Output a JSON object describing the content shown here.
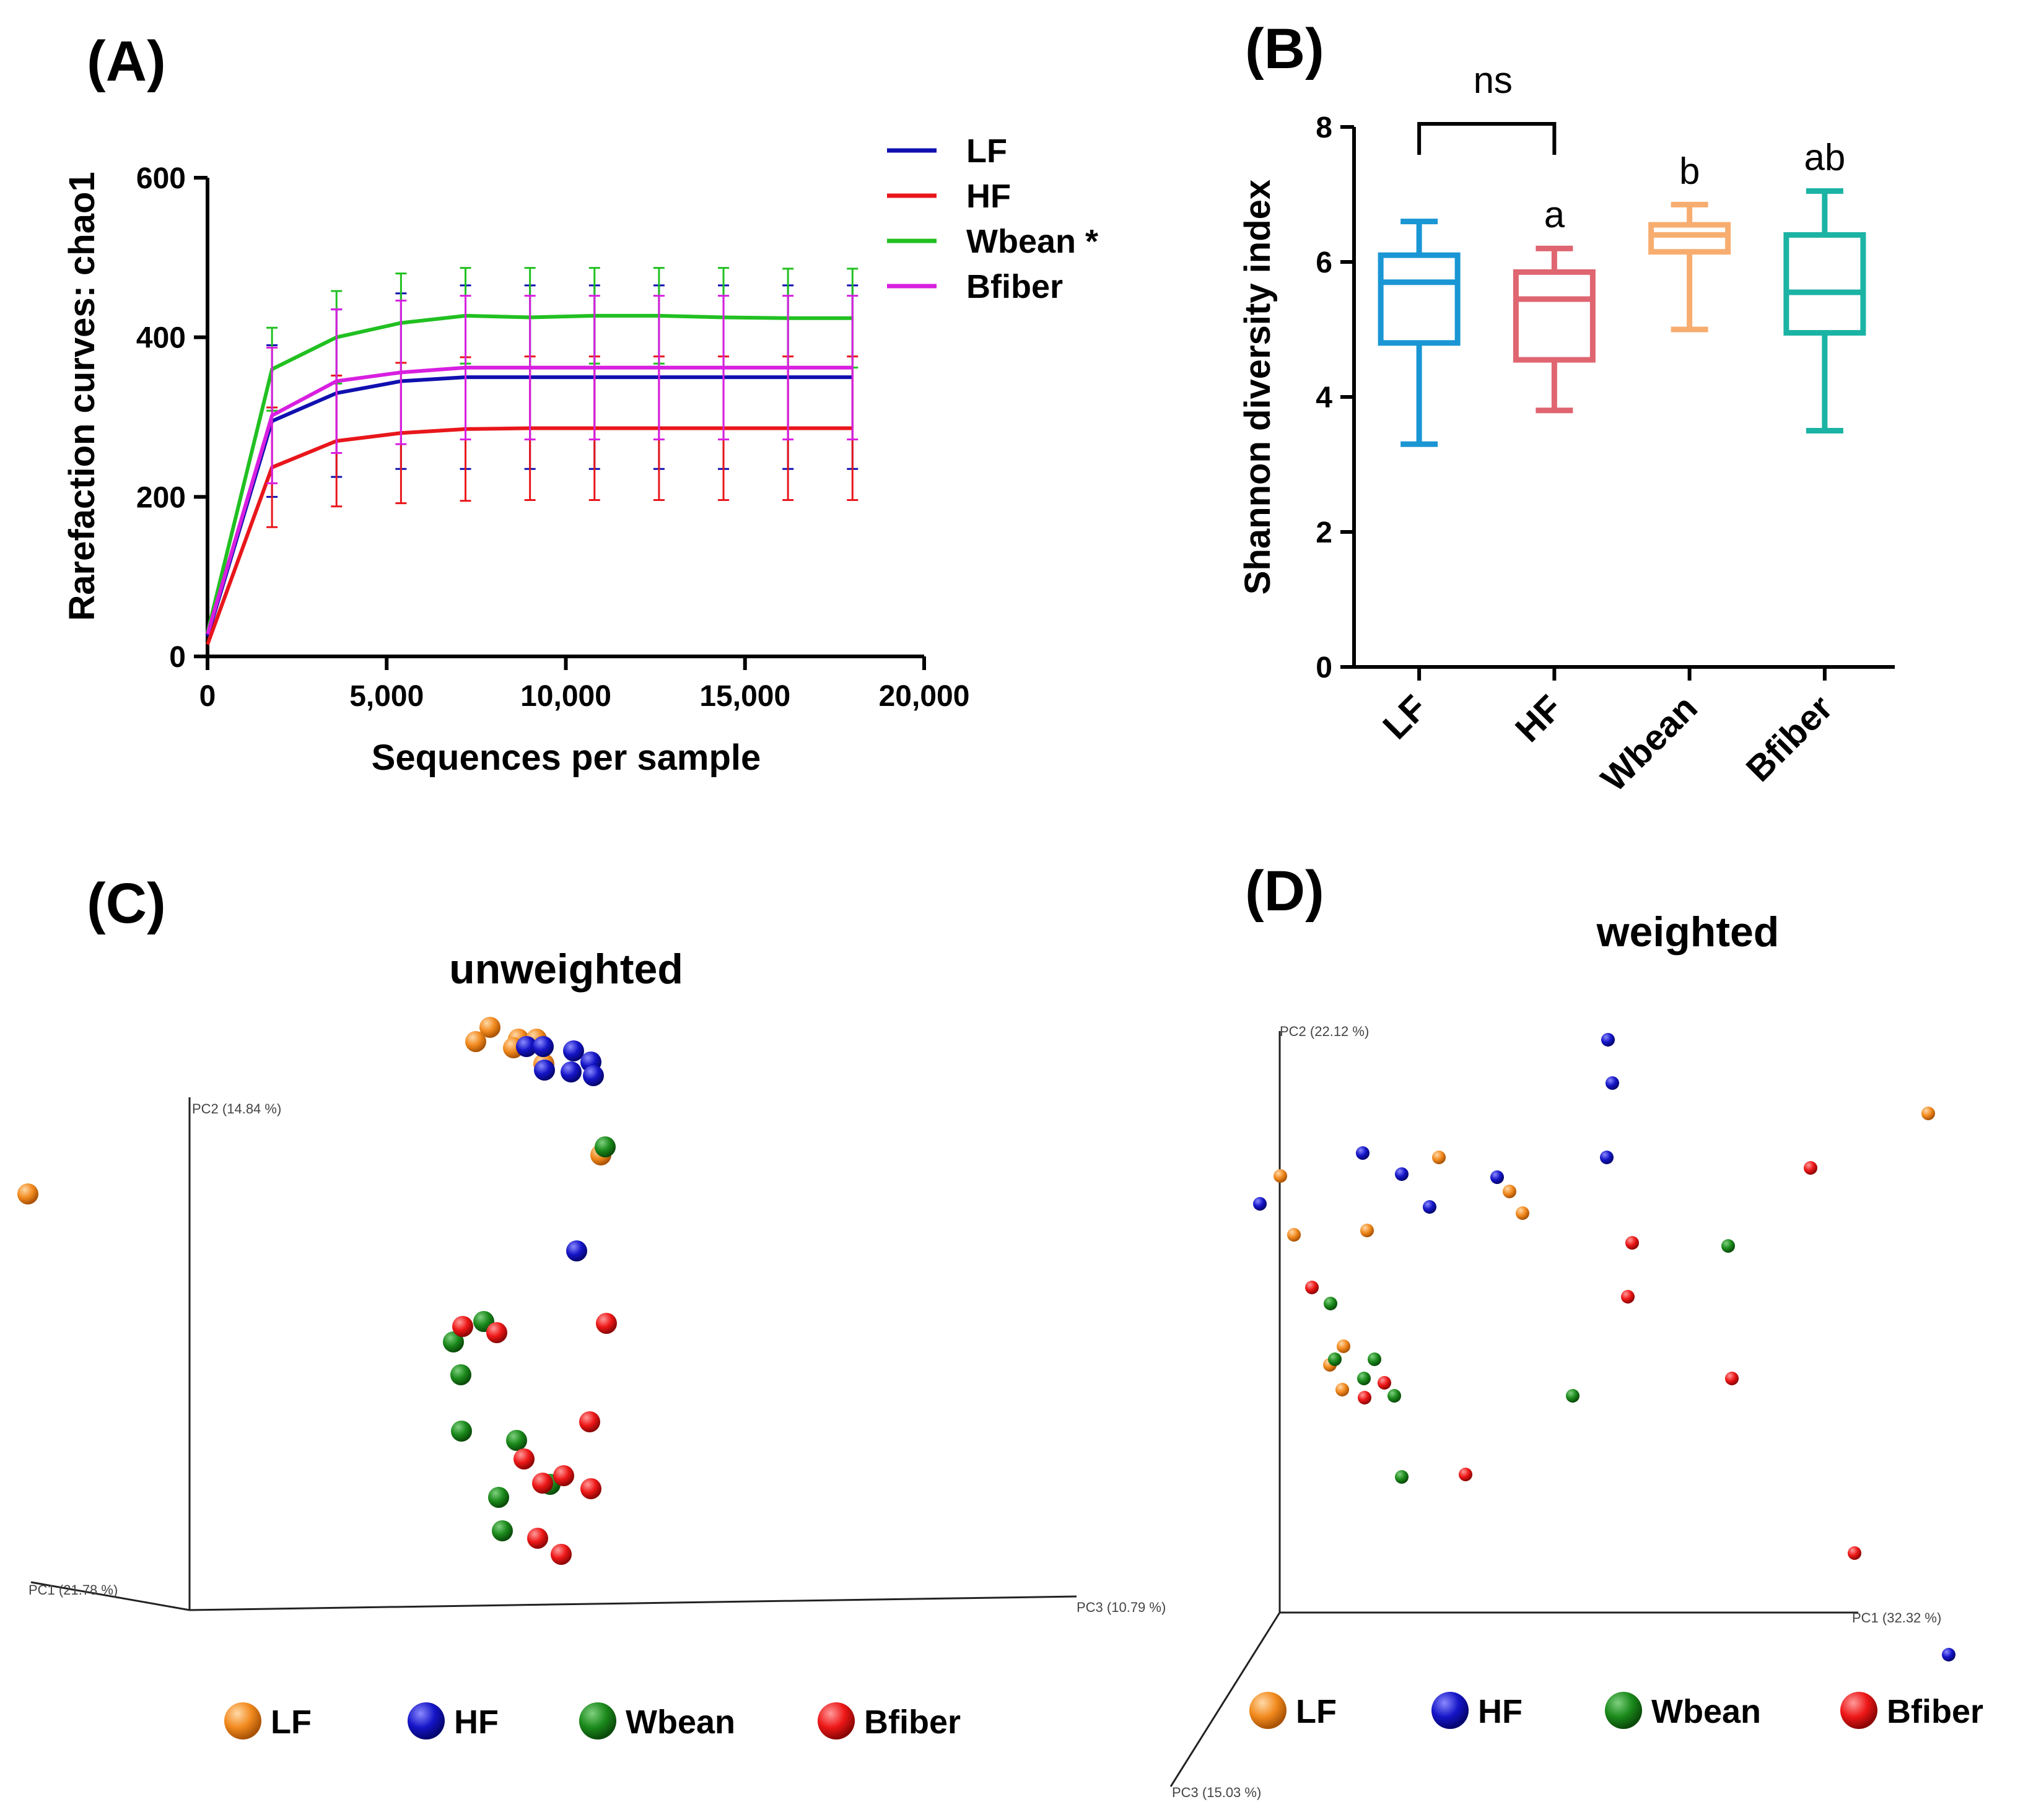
{
  "panels": {
    "A": {
      "label": "(A)"
    },
    "B": {
      "label": "(B)"
    },
    "C": {
      "label": "(C)",
      "title": "unweighted"
    },
    "D": {
      "label": "(D)",
      "title": "weighted"
    }
  },
  "chart_data": [
    {
      "id": "A",
      "type": "line",
      "ylabel": "Rarefaction curves: chao1",
      "xlabel": "Sequences per sample",
      "xlim": [
        0,
        20000
      ],
      "ylim": [
        0,
        600
      ],
      "xticks": [
        0,
        5000,
        10000,
        15000,
        20000
      ],
      "xtick_labels": [
        "0",
        "5,000",
        "10,000",
        "15,000",
        "20,000"
      ],
      "yticks": [
        0,
        200,
        400,
        600
      ],
      "ytick_labels": [
        "0",
        "200",
        "400",
        "600"
      ],
      "x": [
        0,
        1800,
        3600,
        5400,
        7200,
        9000,
        10800,
        12600,
        14400,
        16200,
        18000
      ],
      "series": [
        {
          "name": "LF",
          "color": "#1010b0",
          "values": [
            25,
            295,
            330,
            345,
            350,
            350,
            350,
            350,
            350,
            350,
            350
          ],
          "error": [
            10,
            95,
            105,
            110,
            115,
            115,
            115,
            115,
            115,
            115,
            115
          ]
        },
        {
          "name": "HF",
          "color": "#e8161b",
          "values": [
            15,
            237,
            270,
            280,
            285,
            286,
            286,
            286,
            286,
            286,
            286
          ],
          "error": [
            8,
            75,
            82,
            88,
            90,
            90,
            90,
            90,
            90,
            90,
            90
          ]
        },
        {
          "name": "Wbean *",
          "color": "#21c021",
          "values": [
            30,
            360,
            400,
            418,
            427,
            425,
            427,
            427,
            425,
            424,
            424
          ],
          "error": [
            10,
            52,
            58,
            62,
            60,
            62,
            60,
            60,
            62,
            62,
            62
          ]
        },
        {
          "name": "Bfiber",
          "color": "#d81fe0",
          "values": [
            28,
            302,
            345,
            356,
            362,
            362,
            362,
            362,
            362,
            362,
            362
          ],
          "error": [
            10,
            85,
            90,
            90,
            90,
            90,
            90,
            90,
            90,
            90,
            90
          ]
        }
      ]
    },
    {
      "id": "B",
      "type": "box",
      "ylabel": "Shannon diversity index",
      "ylim": [
        0,
        8
      ],
      "yticks": [
        0,
        2,
        4,
        6,
        8
      ],
      "ytick_labels": [
        "0",
        "2",
        "4",
        "6",
        "8"
      ],
      "categories": [
        "LF",
        "HF",
        "Wbean",
        "Bfiber"
      ],
      "boxes": [
        {
          "name": "LF",
          "color": "#1a96d4",
          "min": 3.3,
          "q1": 4.8,
          "median": 5.7,
          "q3": 6.1,
          "max": 6.6,
          "letter": ""
        },
        {
          "name": "HF",
          "color": "#df6570",
          "min": 3.8,
          "q1": 4.55,
          "median": 5.45,
          "q3": 5.85,
          "max": 6.2,
          "letter": "a"
        },
        {
          "name": "Wbean",
          "color": "#f7ad70",
          "min": 5.0,
          "q1": 6.15,
          "median": 6.4,
          "q3": 6.55,
          "max": 6.85,
          "letter": "b"
        },
        {
          "name": "Bfiber",
          "color": "#1bb3a4",
          "min": 3.5,
          "q1": 4.95,
          "median": 5.55,
          "q3": 6.4,
          "max": 7.05,
          "letter": "ab"
        }
      ],
      "comparison": {
        "from": "LF",
        "to": "HF",
        "label": "ns"
      }
    }
  ],
  "pca_legend": [
    {
      "name": "LF",
      "color": "#f28a1e"
    },
    {
      "name": "HF",
      "color": "#1515c8"
    },
    {
      "name": "Wbean",
      "color": "#1b8a1b"
    },
    {
      "name": "Bfiber",
      "color": "#ee1717"
    }
  ],
  "pca_unweighted": {
    "axes": {
      "pc1": "PC1 (21.78 %)",
      "pc2": "PC2 (14.84 %)",
      "pc3": "PC3 (10.79 %)"
    },
    "points": [
      {
        "g": "LF",
        "u": 0.45,
        "v": 6.72
      },
      {
        "g": "LF",
        "u": 7.91,
        "v": 9.41
      },
      {
        "g": "LF",
        "u": 7.68,
        "v": 9.18
      },
      {
        "g": "LF",
        "u": 8.37,
        "v": 9.22
      },
      {
        "g": "LF",
        "u": 8.29,
        "v": 9.08
      },
      {
        "g": "LF",
        "u": 8.66,
        "v": 9.22
      },
      {
        "g": "LF",
        "u": 8.78,
        "v": 8.82
      },
      {
        "g": "LF",
        "u": 9.7,
        "v": 7.35
      },
      {
        "g": "HF",
        "u": 8.5,
        "v": 9.1
      },
      {
        "g": "HF",
        "u": 8.77,
        "v": 9.1
      },
      {
        "g": "HF",
        "u": 9.26,
        "v": 9.03
      },
      {
        "g": "HF",
        "u": 9.54,
        "v": 8.85
      },
      {
        "g": "HF",
        "u": 8.79,
        "v": 8.72
      },
      {
        "g": "HF",
        "u": 9.22,
        "v": 8.69
      },
      {
        "g": "HF",
        "u": 9.58,
        "v": 8.63
      },
      {
        "g": "HF",
        "u": 9.31,
        "v": 5.8
      },
      {
        "g": "Wbean",
        "u": 9.77,
        "v": 7.48
      },
      {
        "g": "Wbean",
        "u": 7.81,
        "v": 4.66
      },
      {
        "g": "Wbean",
        "u": 7.32,
        "v": 4.33
      },
      {
        "g": "Wbean",
        "u": 7.44,
        "v": 3.8
      },
      {
        "g": "Wbean",
        "u": 7.45,
        "v": 2.89
      },
      {
        "g": "Wbean",
        "u": 8.34,
        "v": 2.74
      },
      {
        "g": "Wbean",
        "u": 8.05,
        "v": 1.82
      },
      {
        "g": "Wbean",
        "u": 8.11,
        "v": 1.28
      },
      {
        "g": "Wbean",
        "u": 8.88,
        "v": 2.03
      },
      {
        "g": "Bfiber",
        "u": 7.47,
        "v": 4.58
      },
      {
        "g": "Bfiber",
        "u": 8.02,
        "v": 4.48
      },
      {
        "g": "Bfiber",
        "u": 9.79,
        "v": 4.63
      },
      {
        "g": "Bfiber",
        "u": 9.52,
        "v": 3.04
      },
      {
        "g": "Bfiber",
        "u": 8.46,
        "v": 2.44
      },
      {
        "g": "Bfiber",
        "u": 8.76,
        "v": 2.05
      },
      {
        "g": "Bfiber",
        "u": 9.1,
        "v": 2.17
      },
      {
        "g": "Bfiber",
        "u": 9.54,
        "v": 1.96
      },
      {
        "g": "Bfiber",
        "u": 8.68,
        "v": 1.16
      },
      {
        "g": "Bfiber",
        "u": 9.06,
        "v": 0.9
      }
    ]
  },
  "pca_weighted": {
    "axes": {
      "pc1": "PC1 (32.32 %)",
      "pc2": "PC2 (22.12 %)",
      "pc3": "PC3 (15.03 %)"
    },
    "points": [
      {
        "g": "LF",
        "u": 0.01,
        "v": 7.05
      },
      {
        "g": "LF",
        "u": 0.23,
        "v": 6.1
      },
      {
        "g": "LF",
        "u": 1.41,
        "v": 6.17
      },
      {
        "g": "LF",
        "u": 2.57,
        "v": 7.35
      },
      {
        "g": "LF",
        "u": 3.71,
        "v": 6.8
      },
      {
        "g": "LF",
        "u": 3.92,
        "v": 6.45
      },
      {
        "g": "LF",
        "u": 10.47,
        "v": 8.06
      },
      {
        "g": "LF",
        "u": 1.03,
        "v": 4.3
      },
      {
        "g": "LF",
        "u": 0.81,
        "v": 4.0
      },
      {
        "g": "LF",
        "u": 1.01,
        "v": 3.6
      },
      {
        "g": "HF",
        "u": -0.32,
        "v": 6.6
      },
      {
        "g": "HF",
        "u": 1.34,
        "v": 7.42
      },
      {
        "g": "HF",
        "u": 1.97,
        "v": 7.08
      },
      {
        "g": "HF",
        "u": 2.42,
        "v": 6.55
      },
      {
        "g": "HF",
        "u": 3.51,
        "v": 7.03
      },
      {
        "g": "HF",
        "u": 5.28,
        "v": 7.35
      },
      {
        "g": "HF",
        "u": 5.37,
        "v": 8.55
      },
      {
        "g": "HF",
        "u": 5.3,
        "v": 9.25
      },
      {
        "g": "HF",
        "u": 10.8,
        "v": -0.68
      },
      {
        "g": "Wbean",
        "u": 0.82,
        "v": 4.99
      },
      {
        "g": "Wbean",
        "u": 0.89,
        "v": 4.09
      },
      {
        "g": "Wbean",
        "u": 1.53,
        "v": 4.09
      },
      {
        "g": "Wbean",
        "u": 1.36,
        "v": 3.78
      },
      {
        "g": "Wbean",
        "u": 1.85,
        "v": 3.5
      },
      {
        "g": "Wbean",
        "u": 4.73,
        "v": 3.5
      },
      {
        "g": "Wbean",
        "u": 1.97,
        "v": 2.19
      },
      {
        "g": "Wbean",
        "u": 7.24,
        "v": 5.92
      },
      {
        "g": "Bfiber",
        "u": 0.52,
        "v": 5.25
      },
      {
        "g": "Bfiber",
        "u": 1.37,
        "v": 3.47
      },
      {
        "g": "Bfiber",
        "u": 1.69,
        "v": 3.71
      },
      {
        "g": "Bfiber",
        "u": 3.0,
        "v": 2.23
      },
      {
        "g": "Bfiber",
        "u": 5.69,
        "v": 5.97
      },
      {
        "g": "Bfiber",
        "u": 5.62,
        "v": 5.1
      },
      {
        "g": "Bfiber",
        "u": 7.3,
        "v": 3.78
      },
      {
        "g": "Bfiber",
        "u": 8.57,
        "v": 7.18
      },
      {
        "g": "Bfiber",
        "u": 9.28,
        "v": 0.96
      }
    ]
  }
}
